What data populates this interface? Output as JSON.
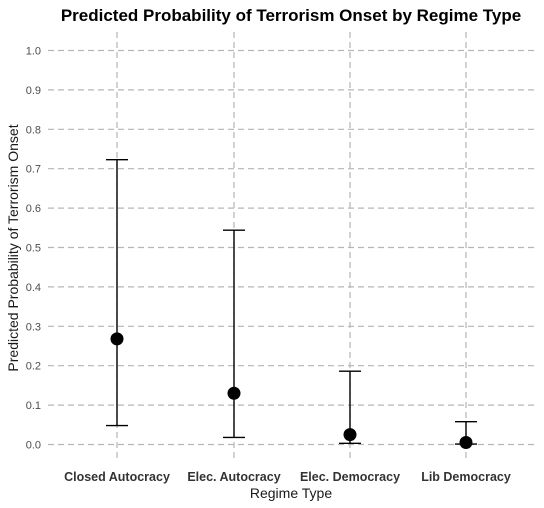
{
  "chart_data": {
    "type": "scatter",
    "title": "Predicted Probability of Terrorism Onset by Regime Type",
    "xlabel": "Regime Type",
    "ylabel": "Predicted Probability of Terrorism Onset",
    "categories": [
      "Closed Autocracy",
      "Elec. Autocracy",
      "Elec. Democracy",
      "Lib Democracy"
    ],
    "series": [
      {
        "values": [
          0.268,
          0.13,
          0.025,
          0.005
        ],
        "lower": [
          0.048,
          0.018,
          0.003,
          0.001
        ],
        "upper": [
          0.723,
          0.544,
          0.186,
          0.058
        ]
      }
    ],
    "yticks": [
      0.0,
      0.1,
      0.2,
      0.3,
      0.4,
      0.5,
      0.6,
      0.7,
      0.8,
      0.9,
      1.0
    ],
    "ytick_labels": [
      "0.0",
      "0.1",
      "0.2",
      "0.3",
      "0.4",
      "0.5",
      "0.6",
      "0.7",
      "0.8",
      "0.9",
      "1.0"
    ],
    "ylim": [
      -0.01,
      1.04
    ],
    "grid": true,
    "grid_style": "dashed",
    "legend": "none",
    "point_color": "#000000",
    "errorbar_color": "#000000",
    "grid_color": "#b5b5b5"
  }
}
